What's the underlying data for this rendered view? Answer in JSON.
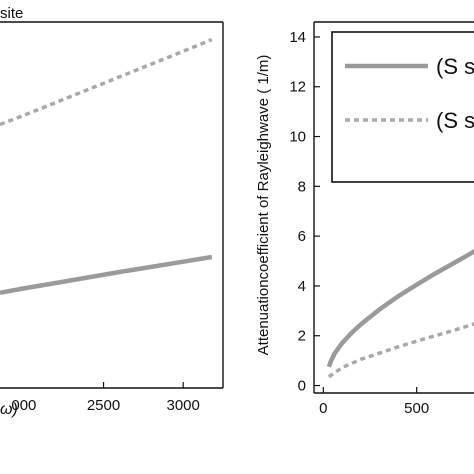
{
  "colors": {
    "solid": "#9a9a9a",
    "dashed": "#a8a8a8",
    "axis": "#111111"
  },
  "chart_data": [
    {
      "type": "line",
      "title": "site",
      "xlabel": "ω)",
      "ylabel": "",
      "xlim": [
        1850,
        3250
      ],
      "ylim": [
        0,
        10
      ],
      "x_tick_values": [
        2500,
        3000
      ],
      "x_tick_labels": [
        "000",
        "2500",
        "3000"
      ],
      "x_tick_label_values": [
        2000,
        2500,
        3000
      ],
      "grid": false,
      "series": [
        {
          "style": "solid",
          "x": [
            1850,
            2000,
            2200,
            2400,
            2600,
            2800,
            3000,
            3180
          ],
          "y": [
            2.6,
            2.72,
            2.87,
            3.02,
            3.17,
            3.31,
            3.45,
            3.58
          ]
        },
        {
          "style": "dashed",
          "x": [
            1850,
            2000,
            2200,
            2400,
            2600,
            2800,
            3000,
            3180
          ],
          "y": [
            7.2,
            7.45,
            7.8,
            8.15,
            8.5,
            8.85,
            9.2,
            9.52
          ]
        }
      ]
    },
    {
      "type": "line",
      "title": "",
      "xlabel": "",
      "ylabel": "Attenuationcoefficient of Rayleighwave ( 1/m)",
      "xlim": [
        -50,
        1000
      ],
      "ylim": [
        -0.3,
        14.6
      ],
      "x_ticks": [
        0,
        500
      ],
      "x_tick_labels": [
        "0",
        "500"
      ],
      "y_ticks": [
        0,
        2,
        4,
        6,
        8,
        10,
        12,
        14
      ],
      "y_tick_labels": [
        "0",
        "2",
        "4",
        "6",
        "8",
        "10",
        "12",
        "14"
      ],
      "grid": false,
      "legend": {
        "placement": "top-right",
        "entries": [
          "(S s",
          "(S s"
        ]
      },
      "series": [
        {
          "style": "solid",
          "x": [
            30,
            40,
            60,
            100,
            150,
            200,
            300,
            400,
            500,
            600,
            700,
            800,
            900,
            1000
          ],
          "y": [
            0.75,
            0.97,
            1.28,
            1.7,
            2.1,
            2.45,
            3.05,
            3.58,
            4.05,
            4.5,
            4.92,
            5.35,
            5.75,
            6.15
          ]
        },
        {
          "style": "dashed",
          "x": [
            30,
            100,
            200,
            300,
            400,
            500,
            600,
            700,
            800,
            900,
            1000
          ],
          "y": [
            0.35,
            0.72,
            1.05,
            1.3,
            1.55,
            1.78,
            2.0,
            2.22,
            2.45,
            2.7,
            2.98
          ]
        }
      ]
    }
  ]
}
